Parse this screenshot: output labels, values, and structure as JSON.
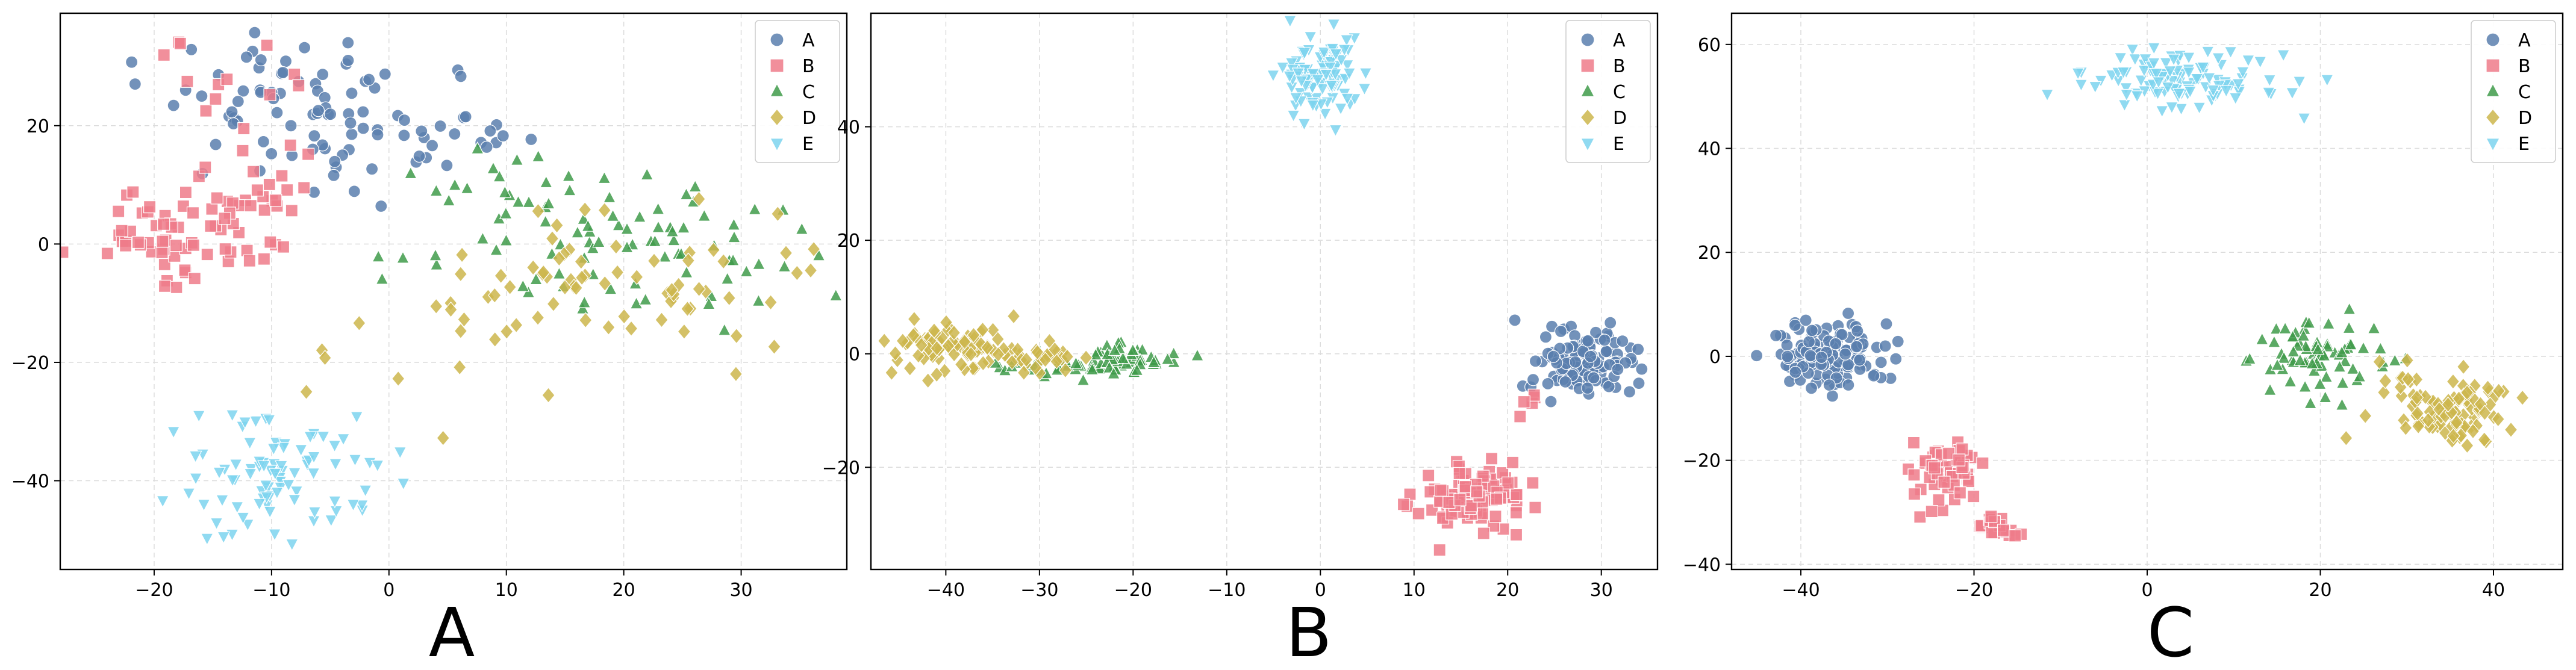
{
  "chart_data": [
    {
      "type": "scatter",
      "panel_label": "A",
      "xlim": [
        -28,
        39
      ],
      "ylim": [
        -55,
        39
      ],
      "xticks": [
        -20,
        -10,
        0,
        10,
        20,
        30
      ],
      "yticks": [
        -40,
        -20,
        0,
        20
      ],
      "xtick_labels": [
        "−20",
        "−10",
        "0",
        "10",
        "20",
        "30"
      ],
      "ytick_labels": [
        "−40",
        "−20",
        "0",
        "20"
      ],
      "grid": true,
      "legend_position": "top-right",
      "series": [
        {
          "name": "A",
          "marker": "circle",
          "color": "#5b7fae",
          "clusters": [
            {
              "cx": -8,
              "cy": 23,
              "sx": 5.5,
              "sy": 6.5,
              "n": 70
            },
            {
              "cx": 2,
              "cy": 18,
              "sx": 5,
              "sy": 5,
              "n": 25
            },
            {
              "cx": 10,
              "cy": 18,
              "sx": 2,
              "sy": 2,
              "n": 4
            }
          ]
        },
        {
          "name": "B",
          "marker": "square",
          "color": "#ee7b89",
          "clusters": [
            {
              "cx": -20,
              "cy": 3,
              "sx": 3.5,
              "sy": 4,
              "n": 45
            },
            {
              "cx": -12,
              "cy": 6,
              "sx": 3.5,
              "sy": 7,
              "n": 40
            },
            {
              "cx": -12,
              "cy": 28,
              "sx": 3,
              "sy": 4,
              "n": 12
            }
          ]
        },
        {
          "name": "C",
          "marker": "triangle",
          "color": "#3f9b4a",
          "clusters": [
            {
              "cx": 20,
              "cy": 0,
              "sx": 9,
              "sy": 6,
              "n": 80
            },
            {
              "cx": 8,
              "cy": 10,
              "sx": 4,
              "sy": 4,
              "n": 15
            }
          ]
        },
        {
          "name": "D",
          "marker": "diamond",
          "color": "#cdb64c",
          "clusters": [
            {
              "cx": 20,
              "cy": -6,
              "sx": 8,
              "sy": 6,
              "n": 65
            },
            {
              "cx": 5,
              "cy": -15,
              "sx": 5,
              "sy": 6,
              "n": 15
            }
          ]
        },
        {
          "name": "E",
          "marker": "triangle-down",
          "color": "#7dd3ee",
          "clusters": [
            {
              "cx": -9,
              "cy": -39,
              "sx": 4.2,
              "sy": 5,
              "n": 90
            }
          ]
        }
      ]
    },
    {
      "type": "scatter",
      "panel_label": "B",
      "xlim": [
        -48,
        36
      ],
      "ylim": [
        -38,
        60
      ],
      "xticks": [
        -40,
        -30,
        -20,
        -10,
        0,
        10,
        20,
        30
      ],
      "yticks": [
        -20,
        0,
        20,
        40
      ],
      "xtick_labels": [
        "−40",
        "−30",
        "−20",
        "−10",
        "0",
        "10",
        "20",
        "30"
      ],
      "ytick_labels": [
        "−20",
        "0",
        "20",
        "40"
      ],
      "grid": true,
      "legend_position": "top-right",
      "series": [
        {
          "name": "A",
          "marker": "circle",
          "color": "#5b7fae",
          "clusters": [
            {
              "cx": 28,
              "cy": -2,
              "sx": 2.6,
              "sy": 3,
              "n": 120
            }
          ]
        },
        {
          "name": "B",
          "marker": "square",
          "color": "#ee7b89",
          "clusters": [
            {
              "cx": 16,
              "cy": -25,
              "sx": 2.6,
              "sy": 3,
              "n": 110
            },
            {
              "cx": 22,
              "cy": -9,
              "sx": 1,
              "sy": 2,
              "n": 5
            }
          ]
        },
        {
          "name": "C",
          "marker": "triangle",
          "color": "#3f9b4a",
          "clusters": [
            {
              "cx": -21,
              "cy": -1,
              "sx": 3,
              "sy": 1.5,
              "n": 60
            },
            {
              "cx": -29,
              "cy": -2,
              "sx": 3,
              "sy": 1.2,
              "n": 25
            }
          ]
        },
        {
          "name": "D",
          "marker": "diamond",
          "color": "#cdb64c",
          "clusters": [
            {
              "cx": -39,
              "cy": 1,
              "sx": 3.5,
              "sy": 2.2,
              "n": 90
            },
            {
              "cx": -31,
              "cy": -1,
              "sx": 3,
              "sy": 1.2,
              "n": 25
            }
          ]
        },
        {
          "name": "E",
          "marker": "triangle-down",
          "color": "#7dd3ee",
          "clusters": [
            {
              "cx": 0,
              "cy": 49,
              "sx": 2.2,
              "sy": 3,
              "n": 110
            }
          ]
        }
      ]
    },
    {
      "type": "scatter",
      "panel_label": "C",
      "xlim": [
        -48,
        48
      ],
      "ylim": [
        -41,
        66
      ],
      "xticks": [
        -40,
        -20,
        0,
        20,
        40
      ],
      "yticks": [
        -40,
        -20,
        0,
        20,
        40,
        60
      ],
      "xtick_labels": [
        "−40",
        "−20",
        "0",
        "20",
        "40"
      ],
      "ytick_labels": [
        "−40",
        "−20",
        "0",
        "20",
        "40",
        "60"
      ],
      "grid": true,
      "legend_position": "top-right",
      "series": [
        {
          "name": "A",
          "marker": "circle",
          "color": "#5b7fae",
          "clusters": [
            {
              "cx": -37,
              "cy": 0,
              "sx": 3.3,
              "sy": 3.3,
              "n": 140
            }
          ]
        },
        {
          "name": "B",
          "marker": "square",
          "color": "#ee7b89",
          "clusters": [
            {
              "cx": -23,
              "cy": -22,
              "sx": 2,
              "sy": 3.5,
              "n": 55
            },
            {
              "cx": -18,
              "cy": -33,
              "sx": 1.5,
              "sy": 1.2,
              "n": 20
            }
          ]
        },
        {
          "name": "C",
          "marker": "triangle",
          "color": "#3f9b4a",
          "clusters": [
            {
              "cx": 20,
              "cy": 0,
              "sx": 4,
              "sy": 3.5,
              "n": 75
            }
          ]
        },
        {
          "name": "D",
          "marker": "diamond",
          "color": "#cdb64c",
          "clusters": [
            {
              "cx": 35,
              "cy": -11,
              "sx": 4,
              "sy": 3,
              "n": 90
            },
            {
              "cx": 29,
              "cy": -4,
              "sx": 2,
              "sy": 2,
              "n": 10
            }
          ]
        },
        {
          "name": "E",
          "marker": "triangle-down",
          "color": "#7dd3ee",
          "clusters": [
            {
              "cx": 4,
              "cy": 53,
              "sx": 6,
              "sy": 3,
              "n": 110
            }
          ]
        }
      ]
    }
  ]
}
